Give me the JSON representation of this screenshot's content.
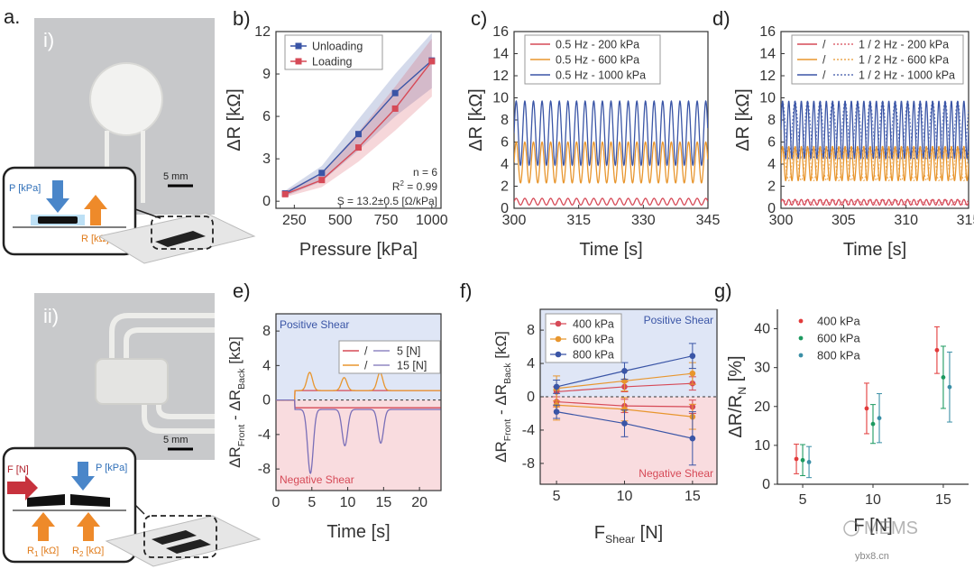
{
  "panels": {
    "a": "a.",
    "a_i": "i)",
    "a_ii": "ii)",
    "b": "b)",
    "c": "c)",
    "d": "d)",
    "e": "e)",
    "f": "f)",
    "g": "g)"
  },
  "photos": {
    "scale_i": "5 mm",
    "scale_ii": "5 mm",
    "inset_i": {
      "p": "P [kPa]",
      "r": "R [kΩ]"
    },
    "inset_ii": {
      "f": "F [N]",
      "p": "P [kPa]",
      "r1": "R",
      "r1_sub": "1",
      "r1_unit": " [kΩ]",
      "r2": "R",
      "r2_sub": "2",
      "r2_unit": " [kΩ]"
    }
  },
  "watermark": {
    "text": "MEMS",
    "site": "ybx8.cn"
  },
  "colors": {
    "navy": "#3a55a6",
    "red": "#d64a57",
    "orange": "#e8962e",
    "purple": "#7a6fb8",
    "posShade": "#dfe6f6",
    "negShade": "#f9dcdf",
    "g_red": "#e23b3b",
    "g_green": "#1d9a60",
    "g_teal": "#3b8fa6"
  },
  "chart_data": [
    {
      "id": "b",
      "type": "line",
      "xlabel": "Pressure [kPa]",
      "ylabel": "ΔR [kΩ]",
      "xlim": [
        150,
        1050
      ],
      "ylim": [
        -0.5,
        12
      ],
      "xticks": [
        250,
        500,
        750,
        1000
      ],
      "yticks": [
        0,
        3,
        6,
        9,
        12
      ],
      "x": [
        200,
        400,
        600,
        800,
        1000
      ],
      "series": [
        {
          "name": "Unloading",
          "color": "#3a55a6",
          "values": [
            0.55,
            2.0,
            4.75,
            7.65,
            9.95
          ],
          "band_lo": [
            0.35,
            1.4,
            3.6,
            6.0,
            8.0
          ],
          "band_hi": [
            0.75,
            2.5,
            5.8,
            9.0,
            11.9
          ]
        },
        {
          "name": "Loading",
          "color": "#d64a57",
          "values": [
            0.5,
            1.5,
            3.8,
            6.55,
            9.9
          ],
          "band_lo": [
            0.3,
            1.0,
            2.8,
            5.0,
            7.4
          ],
          "band_hi": [
            0.7,
            2.0,
            4.9,
            8.1,
            11.5
          ]
        }
      ],
      "annotations": {
        "n": "n = 6",
        "r2": "R",
        "r2_sup": "2",
        "r2_val": " = 0.99",
        "s": "S = 13.2±0.5 [Ω/kPa]"
      },
      "legend": "top-left"
    },
    {
      "id": "c",
      "type": "line",
      "xlabel": "Time [s]",
      "ylabel": "ΔR [kΩ]",
      "xlim": [
        300,
        345
      ],
      "ylim": [
        0,
        16
      ],
      "xticks": [
        300,
        315,
        330,
        345
      ],
      "yticks": [
        0,
        2,
        4,
        6,
        8,
        10,
        12,
        14,
        16
      ],
      "series": [
        {
          "name": "0.5 Hz - 200 kPa",
          "color": "#d64a57",
          "freq": 0.5,
          "min": 0.3,
          "max": 0.9
        },
        {
          "name": "0.5 Hz - 600 kPa",
          "color": "#e8962e",
          "freq": 0.5,
          "min": 2.3,
          "max": 6.0
        },
        {
          "name": "0.5 Hz - 1000 kPa",
          "color": "#3a55a6",
          "freq": 0.5,
          "min": 3.9,
          "max": 9.7
        }
      ],
      "legend": "top-left"
    },
    {
      "id": "d",
      "type": "line",
      "xlabel": "Time [s]",
      "ylabel": "ΔR [kΩ]",
      "xlim": [
        300,
        315
      ],
      "ylim": [
        0,
        16
      ],
      "xticks": [
        300,
        305,
        310,
        315
      ],
      "yticks": [
        0,
        2,
        4,
        6,
        8,
        10,
        12,
        14,
        16
      ],
      "legend_sep": "/",
      "series": [
        {
          "name": "1 / 2 Hz - 200 kPa",
          "color": "#d64a57",
          "freq": 2,
          "min": 0.3,
          "max": 0.8
        },
        {
          "name": "1 / 2 Hz - 600 kPa",
          "color": "#e8962e",
          "freq": 2,
          "min": 2.5,
          "max": 5.6
        },
        {
          "name": "1 / 2 Hz - 1000 kPa",
          "color": "#3a55a6",
          "freq": 2,
          "min": 4.5,
          "max": 9.7
        }
      ],
      "legend": "top-left"
    },
    {
      "id": "e",
      "type": "line",
      "xlabel": "Time [s]",
      "ylabel": {
        "a": "ΔR",
        "a_sub": "Front",
        "b": " - ΔR",
        "b_sub": "Back",
        "unit": " [kΩ]"
      },
      "xlim": [
        0,
        23
      ],
      "ylim": [
        -10.5,
        10
      ],
      "xticks": [
        0,
        5,
        10,
        15,
        20
      ],
      "yticks": [
        -8,
        -4,
        0,
        4,
        8
      ],
      "regions": {
        "positive": "Positive Shear",
        "negative": "Negative Shear"
      },
      "legend_sep": "/",
      "series": [
        {
          "name": "5 [N]",
          "color": "#d64a57",
          "pos_level": 1.1,
          "neg_level": -0.9,
          "pos_peaks": [],
          "neg_peaks": []
        },
        {
          "name": "15 [N]",
          "color": "#e8962e",
          "pos_level": 1.1,
          "neg_level": -1.1,
          "pos_peaks": [
            {
              "t": 4.7,
              "v": 3.2
            },
            {
              "t": 9.5,
              "v": 2.6
            },
            {
              "t": 14.5,
              "v": 3.2
            }
          ],
          "neg_peaks": [],
          "second_color": "#7a6fb8",
          "neg_peaks2": [
            {
              "t": 4.8,
              "v": -8.5
            },
            {
              "t": 9.6,
              "v": -5.3
            },
            {
              "t": 14.6,
              "v": -5.0
            }
          ]
        }
      ],
      "legend": "top-right"
    },
    {
      "id": "f",
      "type": "line",
      "xlabel": {
        "a": "F",
        "a_sub": "Shear",
        "unit": " [N]"
      },
      "ylabel": {
        "a": "ΔR",
        "a_sub": "Front",
        "b": " - ΔR",
        "b_sub": "Back",
        "unit": " [kΩ]"
      },
      "xlim": [
        3.8,
        16.8
      ],
      "ylim": [
        -10.5,
        10.5
      ],
      "xticks": [
        5,
        10,
        15
      ],
      "yticks": [
        -8,
        -4,
        0,
        4,
        8
      ],
      "regions": {
        "positive": "Positive Shear",
        "negative": "Negative Shear"
      },
      "x": [
        5,
        10,
        15
      ],
      "series": [
        {
          "name": "400 kPa",
          "color": "#d64a57",
          "values": [
            0.6,
            1.2,
            1.6
          ],
          "err": [
            0.6,
            0.6,
            0.8
          ],
          "neg": [
            -0.6,
            -1.1,
            -1.2
          ],
          "neg_err": [
            0.6,
            0.8,
            0.8
          ]
        },
        {
          "name": "600 kPa",
          "color": "#e8962e",
          "values": [
            1.0,
            1.9,
            2.8
          ],
          "err": [
            1.5,
            1.2,
            1.3
          ],
          "neg": [
            -1.0,
            -1.5,
            -2.4
          ],
          "neg_err": [
            1.8,
            1.4,
            1.5
          ]
        },
        {
          "name": "800 kPa",
          "color": "#3a55a6",
          "values": [
            1.2,
            3.1,
            4.9
          ],
          "err": [
            0.8,
            1.0,
            1.5
          ],
          "neg": [
            -1.8,
            -3.2,
            -5.0
          ],
          "neg_err": [
            0.8,
            1.6,
            3.2
          ]
        }
      ],
      "legend": "top-left"
    },
    {
      "id": "g",
      "type": "scatter",
      "xlabel": "F [N]",
      "ylabel": "ΔR/R",
      "ylabel_sub": "N",
      "ylabel_unit": " [%]",
      "xlim": [
        3.2,
        16.8
      ],
      "ylim": [
        0,
        45
      ],
      "xticks": [
        5,
        10,
        15
      ],
      "yticks": [
        0,
        10,
        20,
        30,
        40
      ],
      "x": [
        5,
        10,
        15
      ],
      "series": [
        {
          "name": "400 kPa",
          "color": "#e23b3b",
          "values": [
            6.5,
            19.5,
            34.5
          ],
          "err": [
            3.8,
            6.5,
            6.0
          ],
          "offset": -0.45
        },
        {
          "name": "600 kPa",
          "color": "#1d9a60",
          "values": [
            6.2,
            15.5,
            27.5
          ],
          "err": [
            4.0,
            5.0,
            8.0
          ],
          "offset": 0
        },
        {
          "name": "800 kPa",
          "color": "#3b8fa6",
          "values": [
            5.7,
            17.0,
            25.0
          ],
          "err": [
            4.0,
            6.3,
            9.0
          ],
          "offset": 0.45
        }
      ],
      "legend": "top-left"
    }
  ]
}
